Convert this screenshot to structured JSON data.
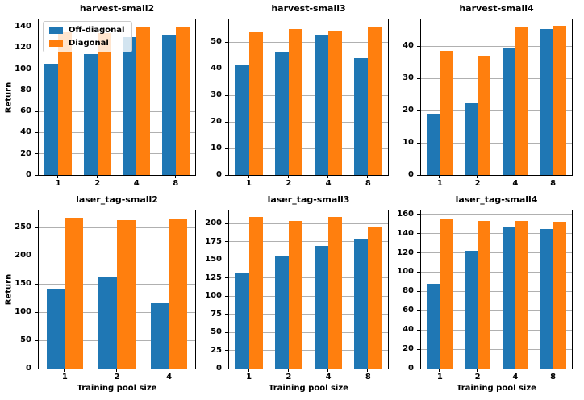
{
  "figure": {
    "ylabel": "Return",
    "xlabel": "Training pool size",
    "colors": {
      "off_diagonal": "#1f77b4",
      "diagonal": "#ff7f0e",
      "grid": "#b0b0b0"
    },
    "legend": {
      "position": "upper left",
      "entries": [
        {
          "label": "Off-diagonal",
          "color": "#1f77b4"
        },
        {
          "label": "Diagonal",
          "color": "#ff7f0e"
        }
      ]
    }
  },
  "chart_data": [
    {
      "type": "bar",
      "title": "harvest-small2",
      "categories": [
        "1",
        "2",
        "4",
        "8"
      ],
      "series": [
        {
          "name": "Off-diagonal",
          "color": "#1f77b4",
          "values": [
            105,
            114,
            130,
            132
          ]
        },
        {
          "name": "Diagonal",
          "color": "#ff7f0e",
          "values": [
            135,
            134,
            140.5,
            139.5
          ]
        }
      ],
      "yticks": [
        0,
        20,
        40,
        60,
        80,
        100,
        120,
        140
      ],
      "ylim": [
        0,
        147
      ],
      "ylabel": "Return",
      "xlabel": "",
      "legend": true,
      "grid": true
    },
    {
      "type": "bar",
      "title": "harvest-small3",
      "categories": [
        "1",
        "2",
        "4",
        "8"
      ],
      "series": [
        {
          "name": "Off-diagonal",
          "color": "#1f77b4",
          "values": [
            41.5,
            46.5,
            52.3,
            44
          ]
        },
        {
          "name": "Diagonal",
          "color": "#ff7f0e",
          "values": [
            53.7,
            55,
            54.2,
            55.5
          ]
        }
      ],
      "yticks": [
        0,
        10,
        20,
        30,
        40,
        50
      ],
      "ylim": [
        0,
        58.5
      ],
      "ylabel": "",
      "xlabel": "",
      "legend": false,
      "grid": true
    },
    {
      "type": "bar",
      "title": "harvest-small4",
      "categories": [
        "1",
        "2",
        "4",
        "8"
      ],
      "series": [
        {
          "name": "Off-diagonal",
          "color": "#1f77b4",
          "values": [
            19,
            22.3,
            39.3,
            45.2
          ]
        },
        {
          "name": "Diagonal",
          "color": "#ff7f0e",
          "values": [
            38.6,
            37.1,
            45.8,
            46.4
          ]
        }
      ],
      "yticks": [
        0,
        10,
        20,
        30,
        40
      ],
      "ylim": [
        0,
        48.3
      ],
      "ylabel": "",
      "xlabel": "",
      "legend": false,
      "grid": true
    },
    {
      "type": "bar",
      "title": "laser_tag-small2",
      "categories": [
        "1",
        "2",
        "4"
      ],
      "series": [
        {
          "name": "Off-diagonal",
          "color": "#1f77b4",
          "values": [
            141,
            163,
            116
          ]
        },
        {
          "name": "Diagonal",
          "color": "#ff7f0e",
          "values": [
            266.5,
            263.5,
            265
          ]
        }
      ],
      "yticks": [
        0,
        50,
        100,
        150,
        200,
        250
      ],
      "ylim": [
        0,
        280
      ],
      "ylabel": "Return",
      "xlabel": "Training pool size",
      "legend": false,
      "grid": true
    },
    {
      "type": "bar",
      "title": "laser_tag-small3",
      "categories": [
        "1",
        "2",
        "4",
        "8"
      ],
      "series": [
        {
          "name": "Off-diagonal",
          "color": "#1f77b4",
          "values": [
            131,
            154.5,
            169,
            179.5
          ]
        },
        {
          "name": "Diagonal",
          "color": "#ff7f0e",
          "values": [
            209.5,
            204,
            209.5,
            195.5
          ]
        }
      ],
      "yticks": [
        0,
        25,
        50,
        75,
        100,
        125,
        150,
        175,
        200
      ],
      "ylim": [
        0,
        218
      ],
      "ylabel": "",
      "xlabel": "Training pool size",
      "legend": false,
      "grid": true
    },
    {
      "type": "bar",
      "title": "laser_tag-small4",
      "categories": [
        "1",
        "2",
        "4",
        "8"
      ],
      "series": [
        {
          "name": "Off-diagonal",
          "color": "#1f77b4",
          "values": [
            88,
            122,
            147.5,
            144.5
          ]
        },
        {
          "name": "Diagonal",
          "color": "#ff7f0e",
          "values": [
            154.5,
            153.5,
            153.5,
            152
          ]
        }
      ],
      "yticks": [
        0,
        20,
        40,
        60,
        80,
        100,
        120,
        140,
        160
      ],
      "ylim": [
        0,
        164
      ],
      "ylabel": "",
      "xlabel": "Training pool size",
      "legend": false,
      "grid": true
    }
  ]
}
